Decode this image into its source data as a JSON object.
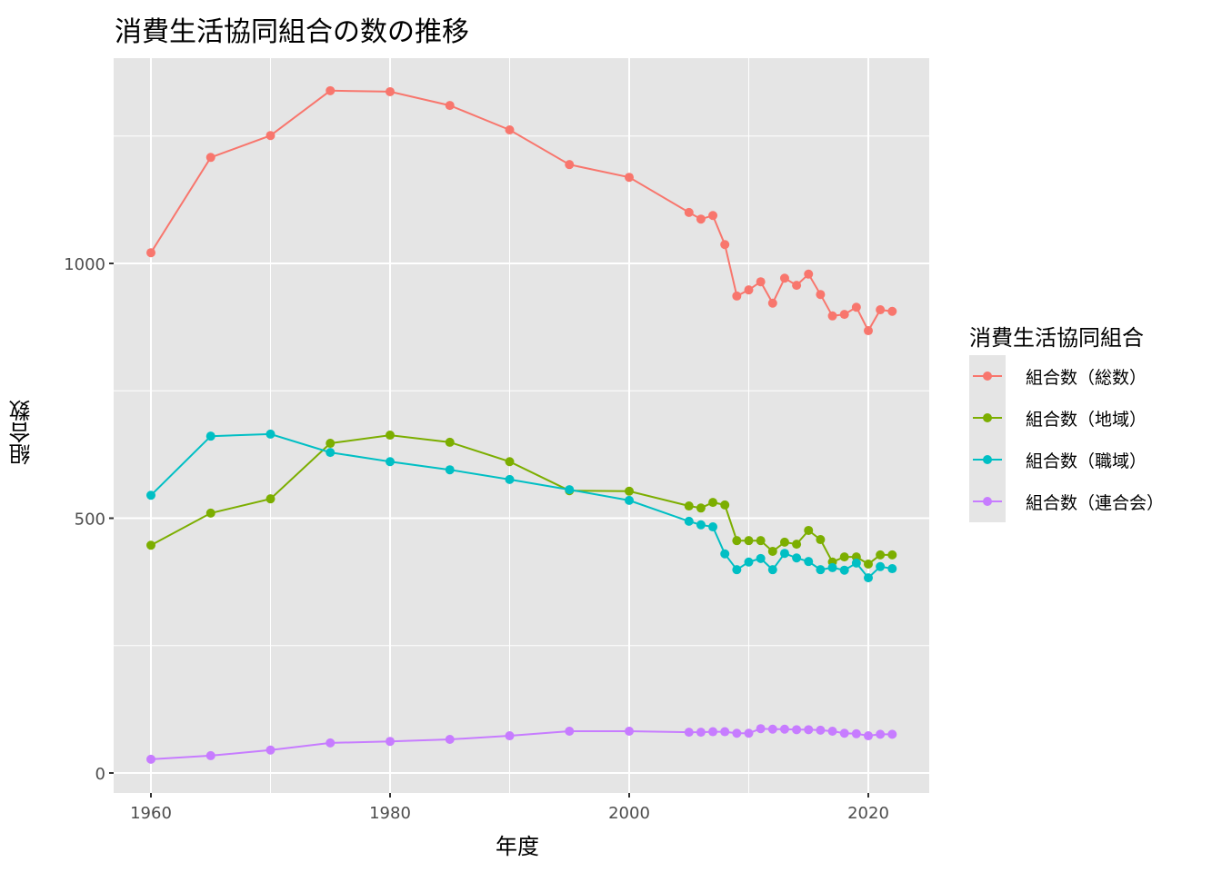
{
  "title": "消費生活協同組合の数の推移",
  "chart_data": {
    "type": "line",
    "title": "消費生活協同組合の数の推移",
    "xlabel": "年度",
    "ylabel": "組合数",
    "x_ticks": [
      1960,
      1980,
      2000,
      2020
    ],
    "y_ticks": [
      0,
      500,
      1000
    ],
    "xlim": [
      1956.8,
      2025.1
    ],
    "ylim": [
      -40,
      1405
    ],
    "grid": true,
    "legend_position": "right",
    "legend_title": "消費生活協同組合",
    "x": [
      1960,
      1965,
      1970,
      1975,
      1980,
      1985,
      1990,
      1995,
      2000,
      2005,
      2006,
      2007,
      2008,
      2009,
      2010,
      2011,
      2012,
      2013,
      2014,
      2015,
      2016,
      2017,
      2018,
      2019,
      2020,
      2021,
      2022
    ],
    "series": [
      {
        "name": "組合数（総数）",
        "color": "#F8766D",
        "values": [
          1021,
          1208,
          1251,
          1339,
          1337,
          1310,
          1262,
          1194,
          1169,
          1100,
          1087,
          1094,
          1037,
          936,
          948,
          964,
          922,
          971,
          957,
          979,
          939,
          897,
          900,
          914,
          868,
          909,
          906
        ]
      },
      {
        "name": "組合数（地域）",
        "color": "#7CAE00",
        "values": [
          447,
          510,
          538,
          647,
          663,
          649,
          611,
          554,
          553,
          524,
          520,
          531,
          526,
          456,
          456,
          456,
          435,
          453,
          449,
          476,
          458,
          414,
          424,
          424,
          410,
          428,
          428
        ]
      },
      {
        "name": "組合数（職域）",
        "color": "#00BFC4",
        "values": [
          545,
          661,
          665,
          629,
          611,
          595,
          576,
          556,
          535,
          494,
          487,
          483,
          430,
          399,
          414,
          421,
          399,
          431,
          422,
          415,
          399,
          403,
          398,
          412,
          383,
          405,
          401
        ]
      },
      {
        "name": "組合数（連合会）",
        "color": "#C77CFF",
        "values": [
          27,
          34,
          45,
          59,
          62,
          66,
          73,
          82,
          82,
          80,
          80,
          81,
          81,
          78,
          78,
          87,
          86,
          86,
          85,
          85,
          84,
          82,
          78,
          77,
          73,
          76,
          76
        ]
      }
    ]
  },
  "legend": {
    "title": "消費生活協同組合",
    "items": [
      {
        "label": "組合数（総数）",
        "color": "#F8766D"
      },
      {
        "label": "組合数（地域）",
        "color": "#7CAE00"
      },
      {
        "label": "組合数（職域）",
        "color": "#00BFC4"
      },
      {
        "label": "組合数（連合会）",
        "color": "#C77CFF"
      }
    ]
  },
  "colors": {
    "panel": "#e5e5e5",
    "grid": "#ffffff"
  }
}
